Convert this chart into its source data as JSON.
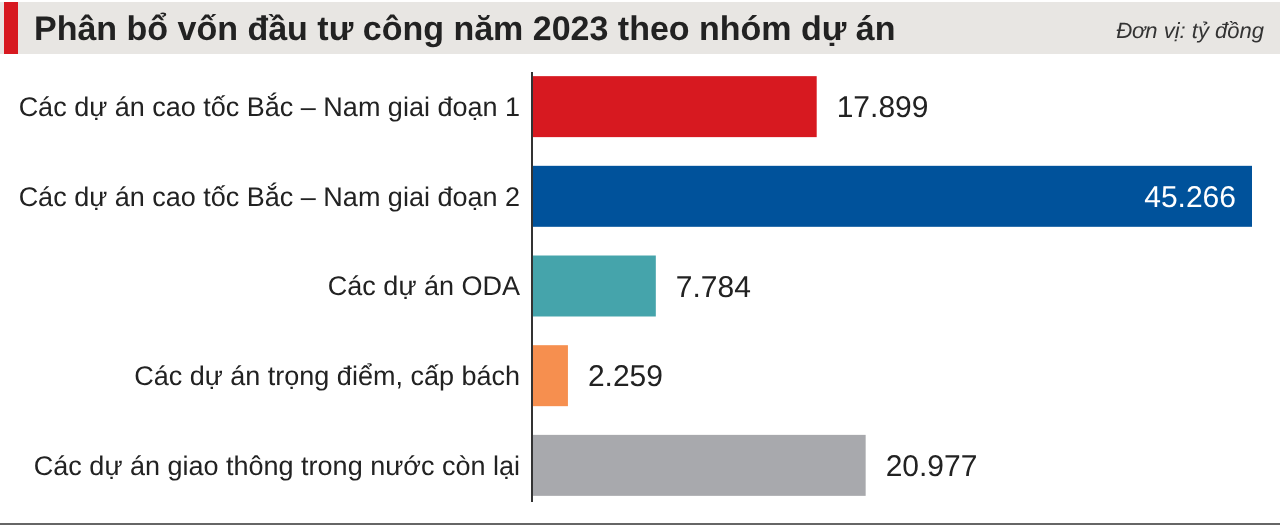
{
  "chart_data": {
    "type": "bar",
    "orientation": "horizontal",
    "title": "Phân bổ vốn đầu tư công năm 2023 theo nhóm dự án",
    "annotations": [
      "Đơn vị: tỷ đồng"
    ],
    "categories": [
      "Các dự án cao tốc Bắc – Nam giai đoạn 1",
      "Các dự án cao tốc Bắc – Nam giai đoạn 2",
      "Các dự án ODA",
      "Các dự án trọng điểm, cấp bách",
      "Các dự án giao thông trong nước còn lại"
    ],
    "values": [
      17899,
      45266,
      7784,
      2259,
      20977
    ],
    "value_labels": [
      "17.899",
      "45.266",
      "7.784",
      "2.259",
      "20.977"
    ],
    "colors": [
      "#d71920",
      "#00529b",
      "#45a4ab",
      "#f68f4f",
      "#a8a9ad"
    ]
  }
}
